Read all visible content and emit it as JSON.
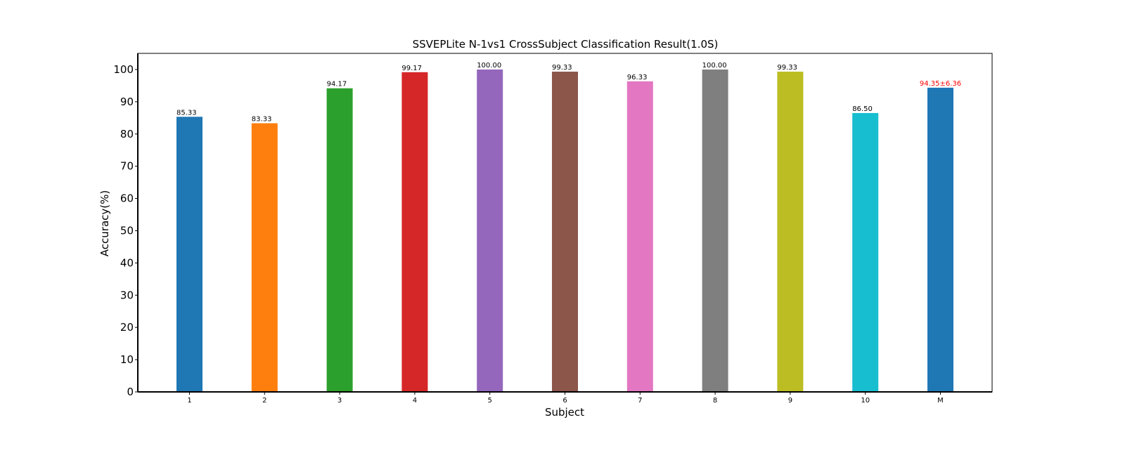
{
  "chart_data": {
    "type": "bar",
    "title": "SSVEPLite N-1vs1 CrossSubject Classification Result(1.0S)",
    "xlabel": "Subject",
    "ylabel": "Accuracy(%)",
    "categories": [
      "1",
      "2",
      "3",
      "4",
      "5",
      "6",
      "7",
      "8",
      "9",
      "10",
      "M"
    ],
    "values": [
      85.33,
      83.33,
      94.17,
      99.17,
      100.0,
      99.33,
      96.33,
      100.0,
      99.33,
      86.5,
      94.35
    ],
    "value_labels": [
      "85.33",
      "83.33",
      "94.17",
      "99.17",
      "100.00",
      "99.33",
      "96.33",
      "100.00",
      "99.33",
      "86.50",
      "94.35±6.36"
    ],
    "colors": [
      "#1f77b4",
      "#ff7f0e",
      "#2ca02c",
      "#d62728",
      "#9467bd",
      "#8c564b",
      "#e377c2",
      "#7f7f7f",
      "#bcbd22",
      "#17becf",
      "#1f77b4"
    ],
    "label_colors": [
      "#000000",
      "#000000",
      "#000000",
      "#000000",
      "#000000",
      "#000000",
      "#000000",
      "#000000",
      "#000000",
      "#000000",
      "#ff0000"
    ],
    "ylim": [
      0,
      105
    ],
    "yticks": [
      0,
      10,
      20,
      30,
      40,
      50,
      60,
      70,
      80,
      90,
      100
    ],
    "grid": false,
    "legend": "none"
  }
}
